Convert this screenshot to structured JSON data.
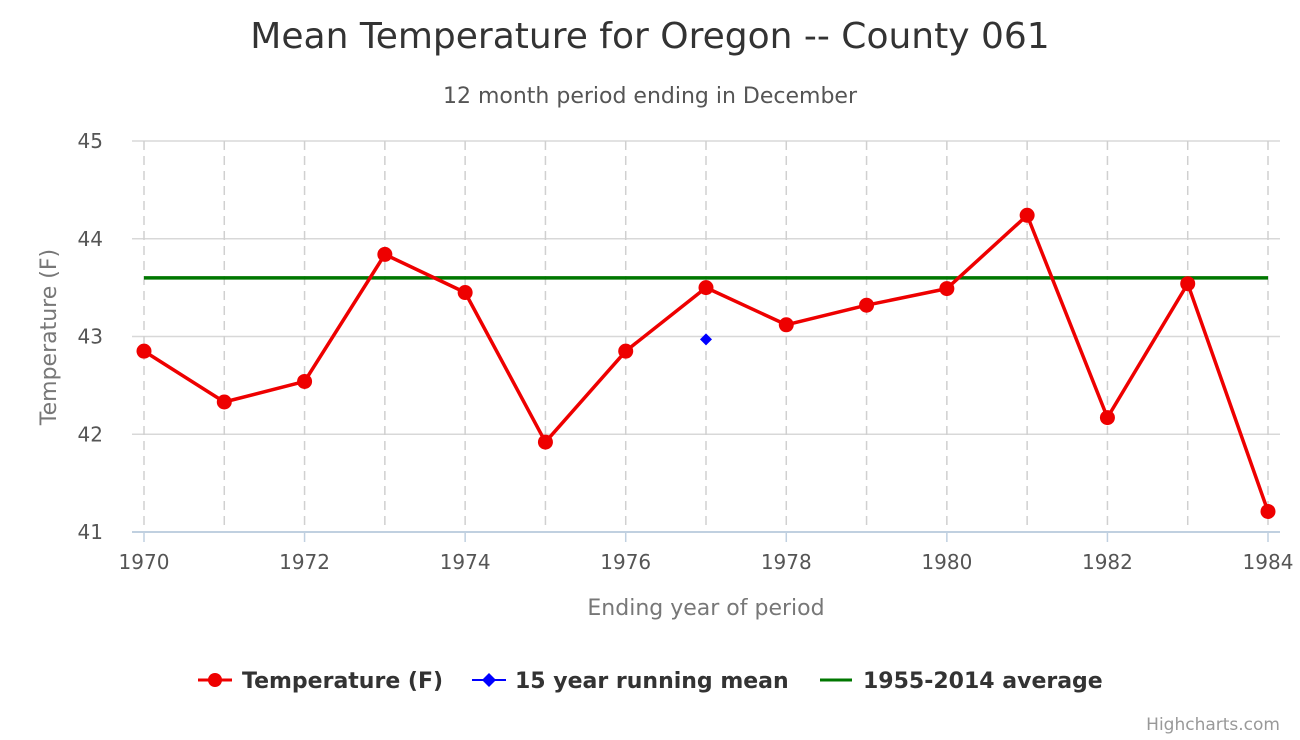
{
  "chart_data": {
    "type": "line",
    "title": "Mean Temperature for Oregon -- County 061",
    "subtitle": "12 month period ending in December",
    "xlabel": "Ending year of period",
    "ylabel": "Temperature (F)",
    "xlim": [
      1970,
      1984
    ],
    "ylim": [
      41,
      45
    ],
    "x_ticks": [
      1970,
      1972,
      1974,
      1976,
      1978,
      1980,
      1982,
      1984
    ],
    "y_ticks": [
      41,
      42,
      43,
      44,
      45
    ],
    "grid": {
      "x": "dashed",
      "y": "solid"
    },
    "legend_position": "bottom-center",
    "credit": "Highcharts.com",
    "series": [
      {
        "name": "Temperature (F)",
        "type": "line",
        "color": "#ee0000",
        "marker": "circle",
        "x": [
          1970,
          1971,
          1972,
          1973,
          1974,
          1975,
          1976,
          1977,
          1978,
          1979,
          1980,
          1981,
          1982,
          1983,
          1984
        ],
        "y": [
          42.85,
          42.33,
          42.54,
          43.84,
          43.45,
          41.92,
          42.85,
          43.5,
          43.12,
          43.32,
          43.49,
          44.24,
          42.17,
          43.54,
          41.21
        ]
      },
      {
        "name": "15 year running mean",
        "type": "scatter",
        "color": "#0000ff",
        "marker": "diamond",
        "x": [
          1977
        ],
        "y": [
          42.97
        ]
      },
      {
        "name": "1955-2014 average",
        "type": "line",
        "color": "#007700",
        "marker": "none",
        "x": [
          1970,
          1984
        ],
        "y": [
          43.6,
          43.6
        ]
      }
    ]
  }
}
